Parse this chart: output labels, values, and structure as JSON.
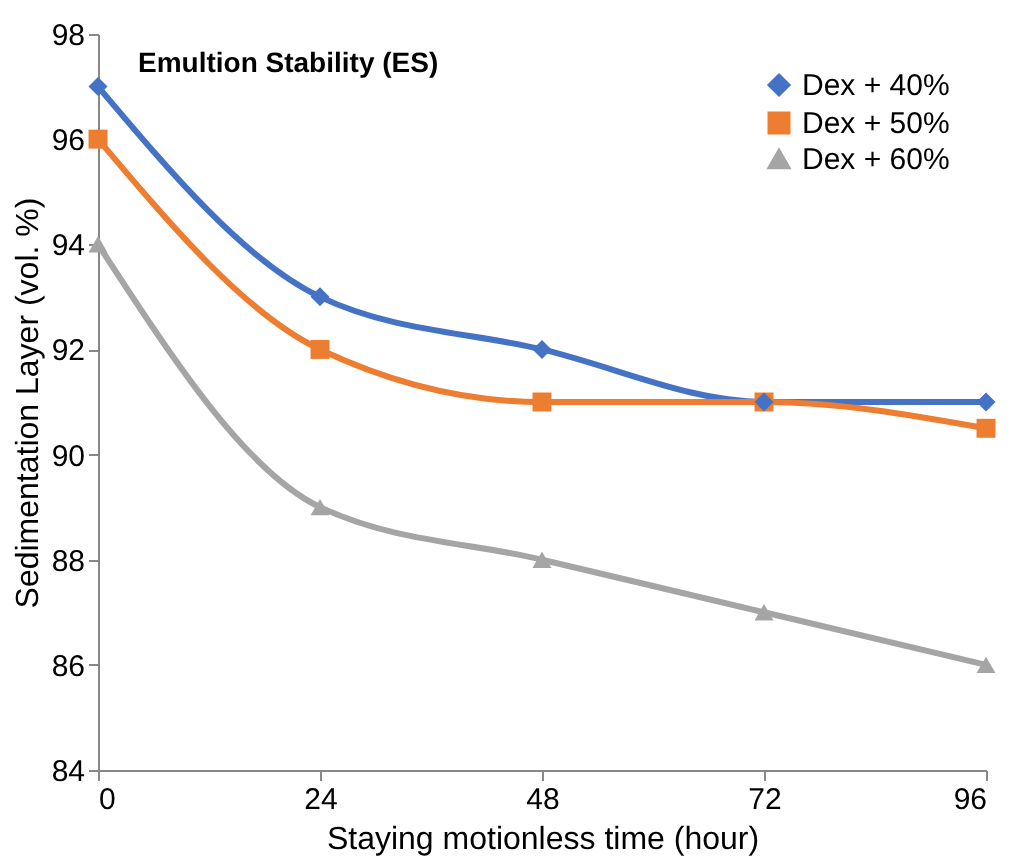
{
  "chart_data": {
    "type": "line",
    "title": "Emultion Stability (ES)",
    "xlabel": "Staying motionless time (hour)",
    "ylabel": "Sedimentation Layer (vol. %)",
    "x": [
      0,
      24,
      48,
      72,
      96
    ],
    "series": [
      {
        "name": "Dex + 40%",
        "color": "#4472c4",
        "marker": "diamond",
        "values": [
          97,
          93,
          92,
          91,
          91
        ]
      },
      {
        "name": "Dex + 50%",
        "color": "#ed7d31",
        "marker": "square",
        "values": [
          96,
          92,
          91,
          91,
          90.5
        ]
      },
      {
        "name": "Dex + 60%",
        "color": "#a5a5a5",
        "marker": "triangle",
        "values": [
          94,
          89,
          88,
          87,
          86
        ]
      }
    ],
    "xlim": [
      0,
      96
    ],
    "xticks": [
      0,
      24,
      48,
      72,
      96
    ],
    "ylim": [
      84,
      98
    ],
    "yticks": [
      84,
      86,
      88,
      90,
      92,
      94,
      96,
      98
    ],
    "grid": false,
    "legend": "top right",
    "line_style": "solid"
  }
}
